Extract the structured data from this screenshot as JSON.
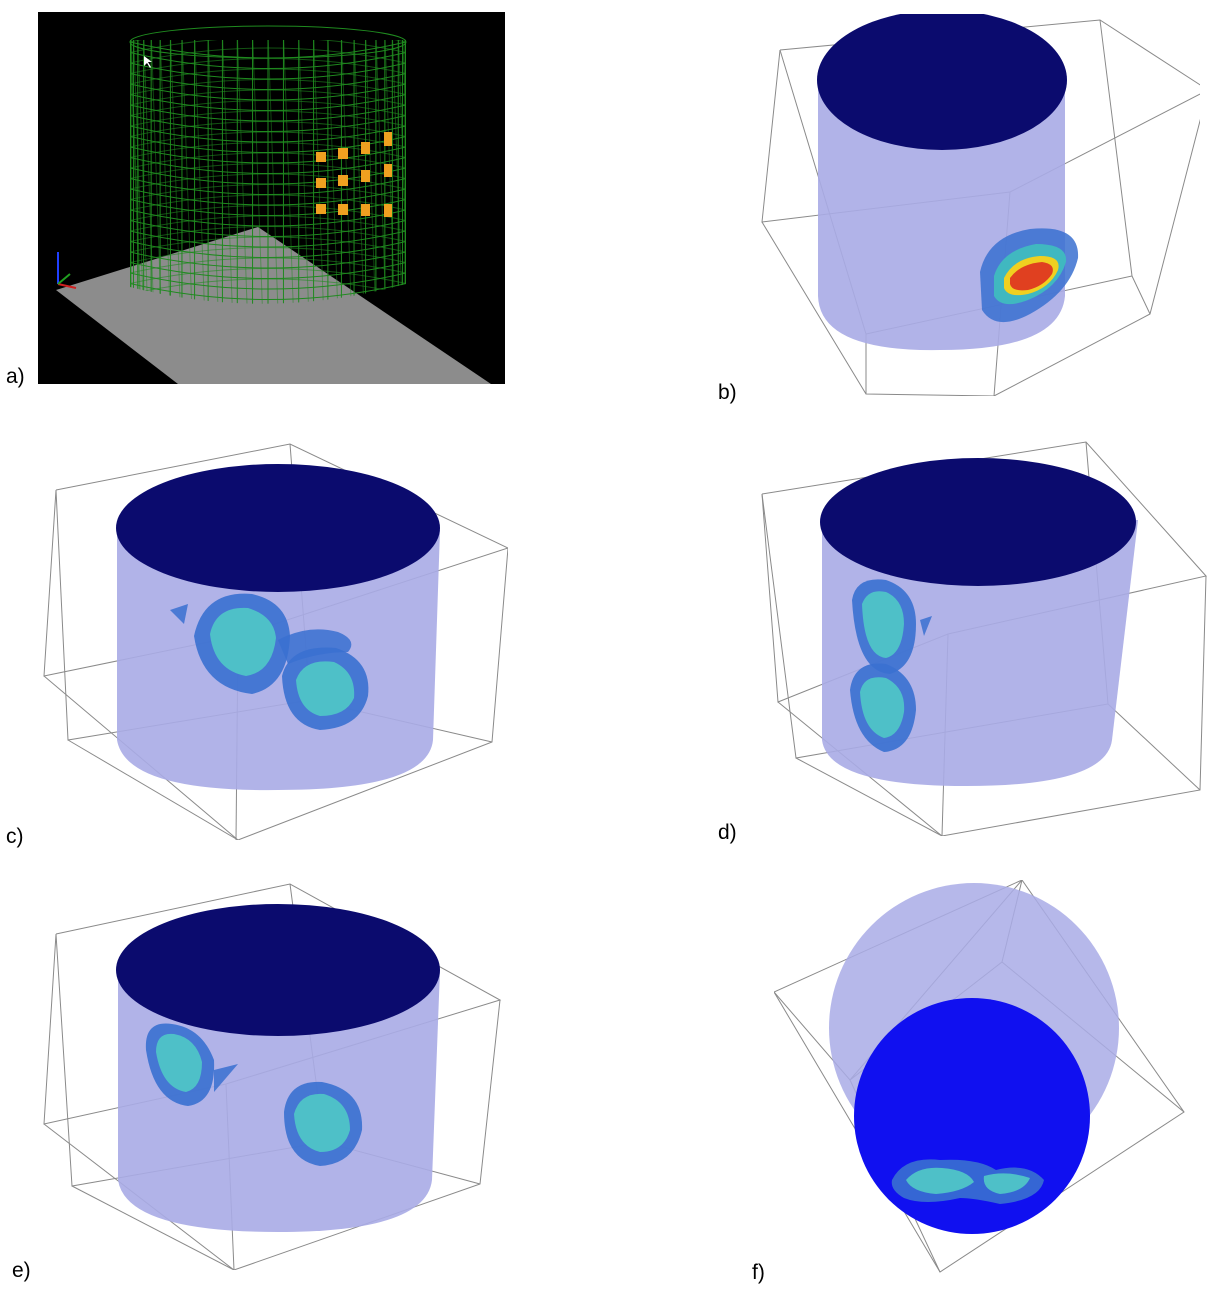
{
  "figure": {
    "panels": [
      {
        "id": "a",
        "label": "a)",
        "description_type": "wireframe-mesh-view"
      },
      {
        "id": "b",
        "label": "b)",
        "description_type": "tank-reconstruction"
      },
      {
        "id": "c",
        "label": "c)",
        "description_type": "tank-reconstruction"
      },
      {
        "id": "d",
        "label": "d)",
        "description_type": "tank-reconstruction"
      },
      {
        "id": "e",
        "label": "e)",
        "description_type": "tank-reconstruction"
      },
      {
        "id": "f",
        "label": "f)",
        "description_type": "tank-reconstruction-top-view"
      }
    ]
  },
  "colors": {
    "background_a": "#000000",
    "mesh_green": "#1f8a1f",
    "electrode_orange": "#f0a020",
    "floor_gray": "#8c8c8c",
    "tank_top": "#0b0b6e",
    "tank_body": "#a9abe6",
    "box_lines": "#8a8a8a",
    "inclusion_blue": "#3a70d0",
    "inclusion_cyan": "#4ec0c8",
    "hot_red": "#e04020",
    "hot_yellow": "#f0d020",
    "bottom_blue": "#1010f0"
  }
}
